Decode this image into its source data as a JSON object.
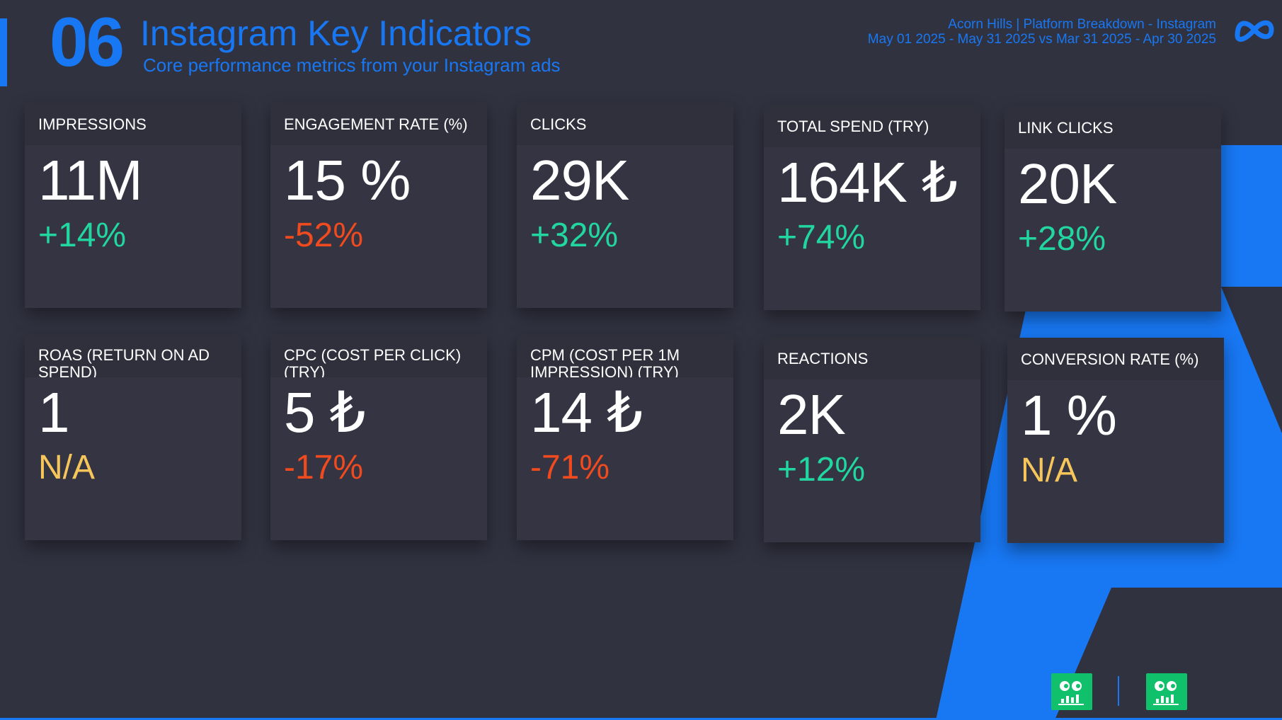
{
  "header": {
    "number": "06",
    "title": "Instagram Key Indicators",
    "subtitle": "Core performance metrics from your Instagram ads",
    "meta_line1": "Acorn Hills | Platform Breakdown - Instagram",
    "meta_line2": "May 01 2025 - May 31 2025 vs Mar 31 2025 - Apr 30 2025",
    "logo_icon": "meta-logo-icon"
  },
  "metrics": [
    {
      "label": "IMPRESSIONS",
      "value": "11M",
      "delta": "+14%",
      "trend": "positive"
    },
    {
      "label": "ENGAGEMENT RATE (%)",
      "value": "15 %",
      "delta": "-52%",
      "trend": "negative"
    },
    {
      "label": "CLICKS",
      "value": "29K",
      "delta": "+32%",
      "trend": "positive"
    },
    {
      "label": "TOTAL SPEND (TRY)",
      "value": "164K ₺",
      "delta": "+74%",
      "trend": "positive"
    },
    {
      "label": "LINK CLICKS",
      "value": "20K",
      "delta": "+28%",
      "trend": "positive"
    },
    {
      "label": "ROAS (RETURN ON AD SPEND)",
      "value": "1",
      "delta": "N/A",
      "trend": "none"
    },
    {
      "label": "CPC (COST PER CLICK) (TRY)",
      "value": "5 ₺",
      "delta": "-17%",
      "trend": "negative"
    },
    {
      "label": "CPM (COST PER 1M IMPRESSION) (TRY)",
      "value": "14 ₺",
      "delta": "-71%",
      "trend": "negative"
    },
    {
      "label": "REACTIONS",
      "value": "2K",
      "delta": "+12%",
      "trend": "positive"
    },
    {
      "label": "CONVERSION RATE (%)",
      "value": "1 %",
      "delta": "N/A",
      "trend": "none"
    }
  ],
  "colors": {
    "background": "#313240",
    "accent": "#1877F2",
    "positive": "#22d6a0",
    "negative": "#f04a1f",
    "not_available": "#f7c65b",
    "footer_logo": "#11c06b"
  },
  "footer": {
    "logo_icons": [
      "brand-logo-icon",
      "brand-logo-icon"
    ]
  }
}
